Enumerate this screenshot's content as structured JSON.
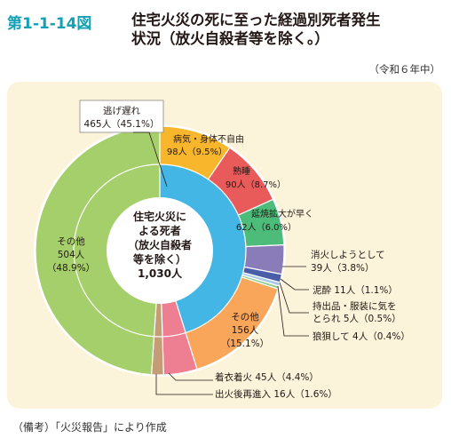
{
  "figure_number": "第1-1-14図",
  "title_line1": "住宅火災の死に至った経過別死者発生",
  "title_line2": "状況（放火自殺者等を除く。）",
  "year_label": "（令和６年中）",
  "center_label": [
    "住宅火災に",
    "よる死者",
    "（放火自殺者",
    "等を除く）",
    "1,030人"
  ],
  "note": "（備考）「火災報告」により作成",
  "chart_data": {
    "type": "pie",
    "title": "住宅火災の死に至った経過別死者発生状況（放火自殺者等を除く。）",
    "total": 1030,
    "total_label": "1,030人",
    "outer": [
      {
        "name": "逃げ遅れ",
        "value": 465,
        "count_label": "465人",
        "pct_label": "（45.1%）",
        "color": "#44b6e5"
      },
      {
        "name": "その他",
        "value": 504,
        "count_label": "504人",
        "pct_label": "（48.9%）",
        "color": "#a5cf6b"
      },
      {
        "name": "出火後再進入",
        "value": 16,
        "count_label": "16人",
        "pct_label": "（1.6%）",
        "color": "#c49c76"
      },
      {
        "name": "着衣着火",
        "value": 45,
        "count_label": "45人",
        "pct_label": "（4.4%）",
        "color": "#ee7e91"
      }
    ],
    "inner": [
      {
        "name": "病気・身体不自由",
        "value": 98,
        "count_label": "98人",
        "pct_label": "（9.5%）",
        "color": "#f8b62d"
      },
      {
        "name": "熟睡",
        "value": 90,
        "count_label": "90人",
        "pct_label": "（8.7%）",
        "color": "#e95a5a"
      },
      {
        "name": "延焼拡大が早く",
        "value": 62,
        "count_label": "62人",
        "pct_label": "（6.0%）",
        "color": "#4dbb7a"
      },
      {
        "name": "消火しようとして",
        "value": 39,
        "count_label": "39人",
        "pct_label": "（3.8%）",
        "color": "#8a7cb8"
      },
      {
        "name": "泥酔",
        "value": 11,
        "count_label": "11人",
        "pct_label": "（1.1%）",
        "color": "#4a5ea8"
      },
      {
        "name": "持出品・服装に気をとられ",
        "value": 5,
        "count_label": "5人",
        "pct_label": "（0.5%）",
        "color": "#a8c8e8"
      },
      {
        "name": "狼狽して",
        "value": 4,
        "count_label": "4人",
        "pct_label": "（0.4%）",
        "color": "#8ccc8c"
      },
      {
        "name": "その他",
        "value": 156,
        "count_label": "156人",
        "pct_label": "（15.1%）",
        "color": "#f9a55a"
      }
    ]
  }
}
